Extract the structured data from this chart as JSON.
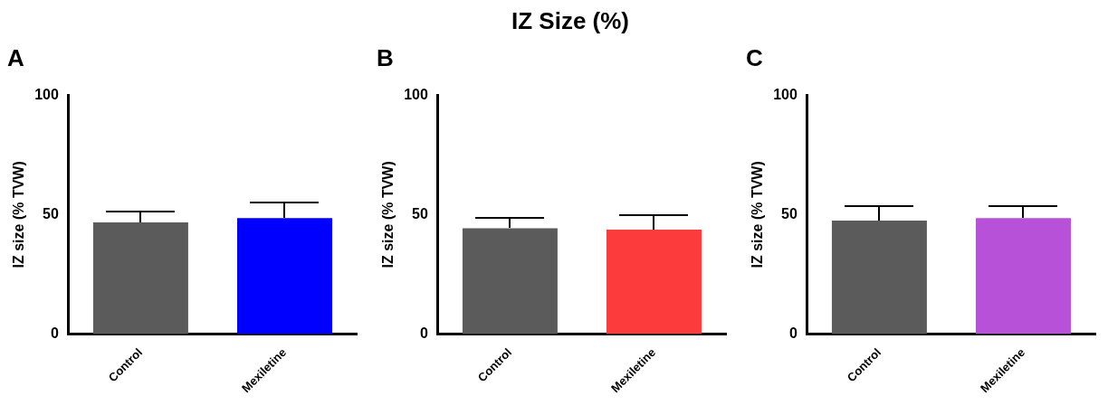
{
  "chart_data": [
    {
      "type": "bar",
      "title": "A",
      "annotations": [
        "IZ Size (%)"
      ],
      "ylabel": "IZ size (% TVW)",
      "categories": [
        "Control",
        "Mexiletine"
      ],
      "values": [
        46.7,
        48.5
      ],
      "colors": [
        "#5b5b5b",
        "#0000ff"
      ],
      "errors": [
        [
          46.7,
          51.3
        ],
        [
          48.5,
          55.1
        ]
      ],
      "ylim": [
        0,
        100
      ],
      "yticks": [
        0,
        50,
        100
      ]
    },
    {
      "type": "bar",
      "title": "B",
      "ylabel": "IZ size (% TVW)",
      "categories": [
        "Control",
        "Mexiletine"
      ],
      "values": [
        44.3,
        43.7
      ],
      "colors": [
        "#5b5b5b",
        "#fc3c3c"
      ],
      "errors": [
        [
          44.3,
          48.5
        ],
        [
          43.7,
          49.6
        ]
      ],
      "ylim": [
        0,
        100
      ],
      "yticks": [
        0,
        50,
        100
      ]
    },
    {
      "type": "bar",
      "title": "C",
      "ylabel": "IZ size (% TVW)",
      "categories": [
        "Control",
        "Mexiletine"
      ],
      "values": [
        47.5,
        48.5
      ],
      "colors": [
        "#5b5b5b",
        "#b752d8"
      ],
      "errors": [
        [
          47.5,
          53.6
        ],
        [
          48.5,
          53.6
        ]
      ],
      "ylim": [
        0,
        100
      ],
      "yticks": [
        0,
        50,
        100
      ]
    }
  ]
}
